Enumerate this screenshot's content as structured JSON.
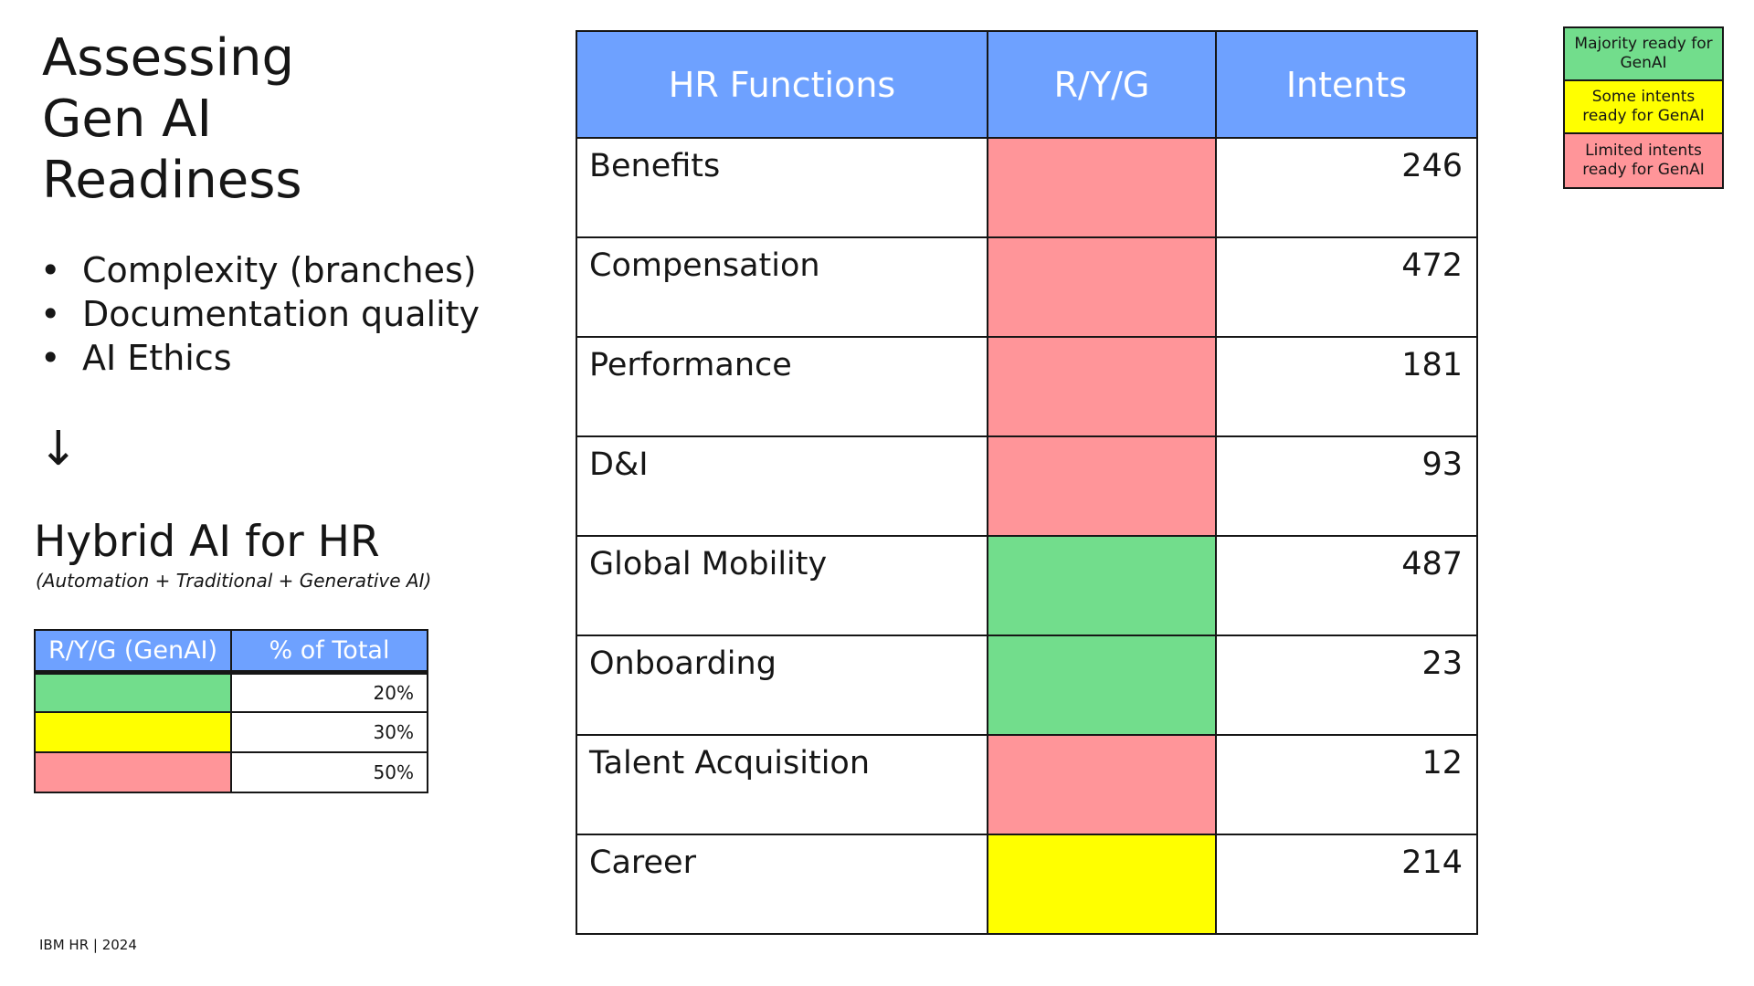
{
  "title_lines": [
    "Assessing",
    "Gen AI",
    "Readiness"
  ],
  "bullets": [
    "Complexity (branches)",
    "Documentation quality",
    "AI Ethics"
  ],
  "bullet_glyph": "•",
  "arrow_glyph": "↓",
  "hybrid": {
    "title": "Hybrid AI for HR",
    "subtitle": "(Automation + Traditional + Generative AI)"
  },
  "summary_table": {
    "headers": [
      "R/Y/G (GenAI)",
      "% of Total"
    ],
    "rows": [
      {
        "color": "#72dd8c",
        "percent": "20%"
      },
      {
        "color": "#ffff00",
        "percent": "30%"
      },
      {
        "color": "#ff9599",
        "percent": "50%"
      }
    ]
  },
  "main_table": {
    "headers": [
      "HR Functions",
      "R/Y/G",
      "Intents"
    ],
    "rows": [
      {
        "function": "Benefits",
        "color": "#ff9599",
        "intents": "246"
      },
      {
        "function": "Compensation",
        "color": "#ff9599",
        "intents": "472"
      },
      {
        "function": "Performance",
        "color": "#ff9599",
        "intents": "181"
      },
      {
        "function": "D&I",
        "color": "#ff9599",
        "intents": "93"
      },
      {
        "function": "Global Mobility",
        "color": "#72dd8c",
        "intents": "487"
      },
      {
        "function": "Onboarding",
        "color": "#72dd8c",
        "intents": "23"
      },
      {
        "function": "Talent Acquisition",
        "color": "#ff9599",
        "intents": "12"
      },
      {
        "function": "Career",
        "color": "#ffff00",
        "intents": "214"
      }
    ]
  },
  "legend": [
    {
      "label": "Majority ready for GenAI",
      "color": "#72dd8c"
    },
    {
      "label": "Some intents ready for GenAI",
      "color": "#ffff00"
    },
    {
      "label": "Limited intents ready for GenAI",
      "color": "#ff9599"
    }
  ],
  "footer": "IBM HR | 2024"
}
